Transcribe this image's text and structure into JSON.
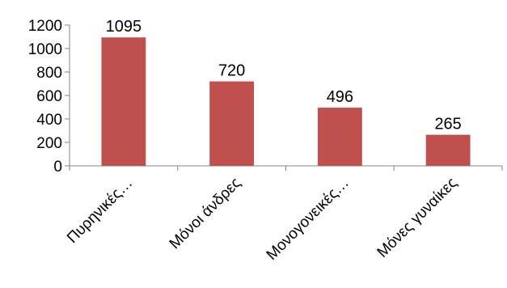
{
  "chart_data": {
    "type": "bar",
    "categories": [
      "Πυρηνικές…",
      "Μόνοι άνδρες",
      "Μονογονεικές…",
      "Μόνες γυναίκες"
    ],
    "values": [
      1095,
      720,
      496,
      265
    ],
    "yticks": [
      0,
      200,
      400,
      600,
      800,
      1000,
      1200
    ],
    "ylim": [
      0,
      1200
    ],
    "bar_color": "#c0504d",
    "axis_color": "#868686",
    "grid": false,
    "legend": "none"
  }
}
